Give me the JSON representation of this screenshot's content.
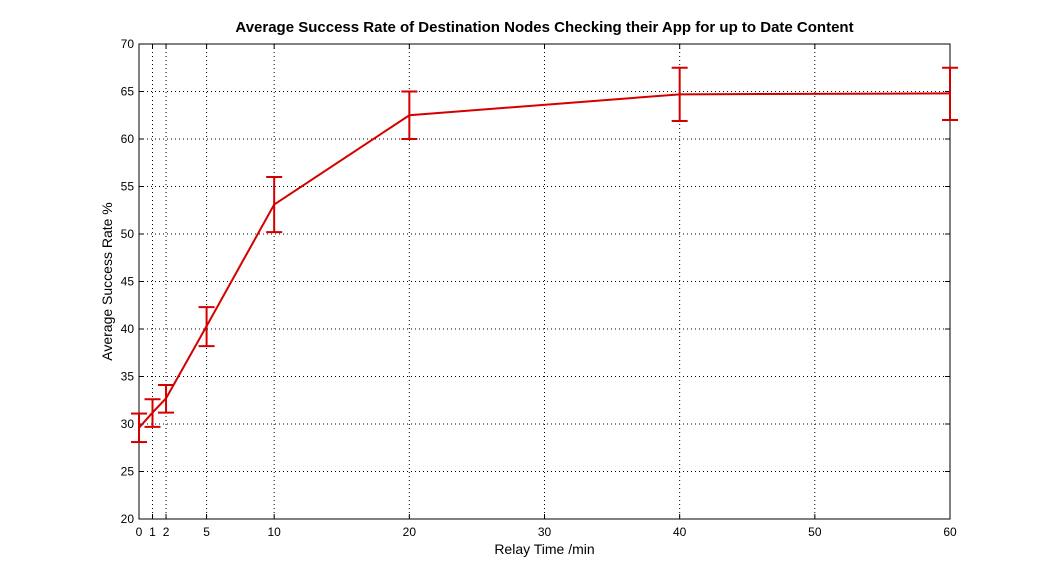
{
  "chart_data": {
    "type": "line",
    "title": "Average Success Rate of Destination Nodes Checking their App for up to Date Content",
    "xlabel": "Relay Time /min",
    "ylabel": "Average Success Rate %",
    "xlim": [
      0,
      60
    ],
    "ylim": [
      20,
      70
    ],
    "x_ticks": [
      0,
      1,
      2,
      5,
      10,
      20,
      30,
      40,
      50,
      60
    ],
    "y_ticks": [
      20,
      25,
      30,
      35,
      40,
      45,
      50,
      55,
      60,
      65,
      70
    ],
    "grid": true,
    "series": [
      {
        "color": "#d40000",
        "x": [
          0,
          1,
          2,
          5,
          10,
          20,
          40,
          60
        ],
        "y": [
          29.6,
          31.2,
          32.7,
          40.3,
          53.1,
          62.5,
          64.7,
          64.8
        ],
        "y_err_low": [
          28.1,
          29.7,
          31.2,
          38.2,
          50.2,
          60.0,
          61.9,
          62.0
        ],
        "y_err_high": [
          31.1,
          32.6,
          34.1,
          42.3,
          56.0,
          65.0,
          67.5,
          67.5
        ]
      }
    ]
  }
}
